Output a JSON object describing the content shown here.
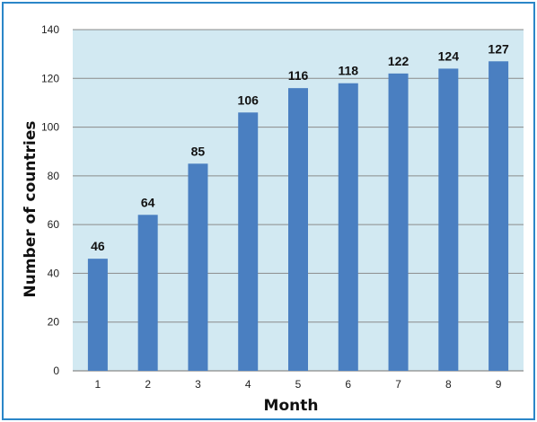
{
  "chart_data": {
    "type": "bar",
    "title": "",
    "xlabel": "Month",
    "ylabel": "Number of countries",
    "categories": [
      "1",
      "2",
      "3",
      "4",
      "5",
      "6",
      "7",
      "8",
      "9"
    ],
    "values": [
      46,
      64,
      85,
      106,
      116,
      118,
      122,
      124,
      127
    ],
    "data_labels": [
      "46",
      "64",
      "85",
      "106",
      "116",
      "118",
      "122",
      "124",
      "127"
    ],
    "ylim": [
      0,
      140
    ],
    "y_ticks": [
      "0",
      "20",
      "40",
      "60",
      "80",
      "100",
      "120",
      "140"
    ],
    "grid": true,
    "legend": "none",
    "colors": {
      "bar": "#4a7fc1",
      "plot_background": "#d2e9f2",
      "gridline": "#8a8a8a",
      "frame_border": "#2a86c8"
    }
  }
}
